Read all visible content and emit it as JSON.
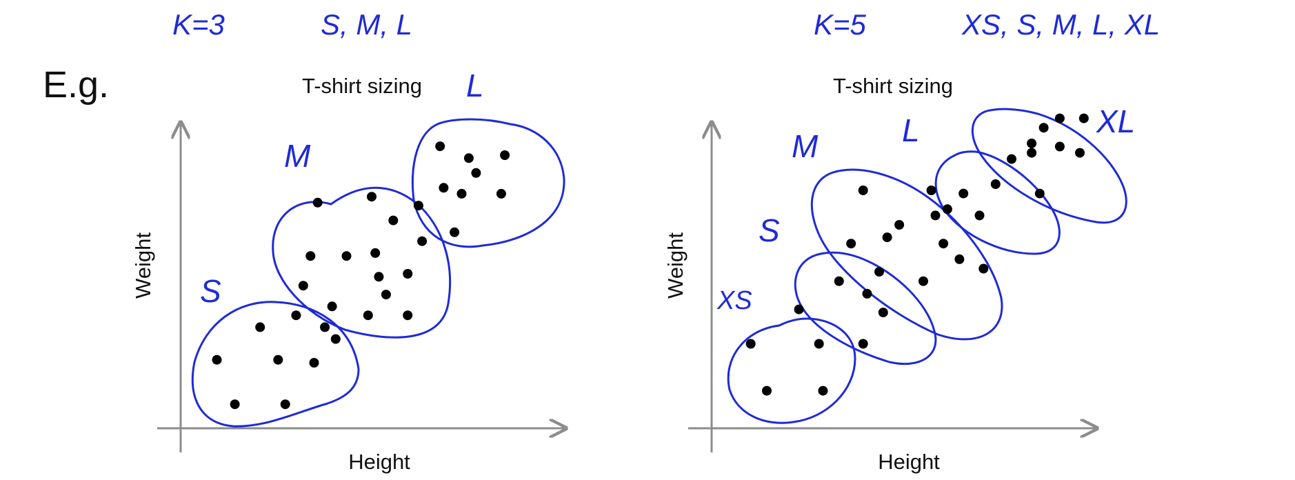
{
  "slide": {
    "example_label": "E.g.",
    "annotations": {
      "k_left": "K=3",
      "sizes_left": "S, M, L",
      "k_right": "K=5",
      "sizes_right": "XS, S, M, L, XL"
    }
  },
  "colors": {
    "ink": "#1f2ad6",
    "axis": "#8c8c8c",
    "point": "#000000",
    "text": "#111111"
  },
  "chart_data": [
    {
      "type": "scatter",
      "title": "T-shirt sizing",
      "xlabel": "Height",
      "ylabel": "Weight",
      "xlim": [
        0,
        10
      ],
      "ylim": [
        0,
        10
      ],
      "grid": false,
      "points": [
        {
          "x": 0.7,
          "y": 2.1,
          "cluster": "S"
        },
        {
          "x": 1.2,
          "y": 0.6,
          "cluster": "S"
        },
        {
          "x": 1.9,
          "y": 3.2,
          "cluster": "S"
        },
        {
          "x": 2.4,
          "y": 2.1,
          "cluster": "S"
        },
        {
          "x": 2.6,
          "y": 0.6,
          "cluster": "S"
        },
        {
          "x": 2.9,
          "y": 3.6,
          "cluster": "S"
        },
        {
          "x": 3.4,
          "y": 2.0,
          "cluster": "S"
        },
        {
          "x": 3.7,
          "y": 3.2,
          "cluster": "S"
        },
        {
          "x": 4.0,
          "y": 2.8,
          "cluster": "S"
        },
        {
          "x": 3.1,
          "y": 4.6,
          "cluster": "M"
        },
        {
          "x": 3.3,
          "y": 5.6,
          "cluster": "M"
        },
        {
          "x": 3.5,
          "y": 7.4,
          "cluster": "M"
        },
        {
          "x": 3.9,
          "y": 3.9,
          "cluster": "M"
        },
        {
          "x": 4.3,
          "y": 5.6,
          "cluster": "M"
        },
        {
          "x": 4.9,
          "y": 3.6,
          "cluster": "M"
        },
        {
          "x": 5.0,
          "y": 7.6,
          "cluster": "M"
        },
        {
          "x": 5.1,
          "y": 5.7,
          "cluster": "M"
        },
        {
          "x": 5.2,
          "y": 4.9,
          "cluster": "M"
        },
        {
          "x": 5.4,
          "y": 4.3,
          "cluster": "M"
        },
        {
          "x": 5.6,
          "y": 6.8,
          "cluster": "M"
        },
        {
          "x": 6.0,
          "y": 5.0,
          "cluster": "M"
        },
        {
          "x": 6.0,
          "y": 3.6,
          "cluster": "M"
        },
        {
          "x": 6.3,
          "y": 7.3,
          "cluster": "M"
        },
        {
          "x": 6.4,
          "y": 6.1,
          "cluster": "M"
        },
        {
          "x": 6.9,
          "y": 9.3,
          "cluster": "L"
        },
        {
          "x": 7.0,
          "y": 7.9,
          "cluster": "L"
        },
        {
          "x": 7.3,
          "y": 6.4,
          "cluster": "L"
        },
        {
          "x": 7.5,
          "y": 7.7,
          "cluster": "L"
        },
        {
          "x": 7.7,
          "y": 8.9,
          "cluster": "L"
        },
        {
          "x": 7.9,
          "y": 8.4,
          "cluster": "L"
        },
        {
          "x": 8.6,
          "y": 7.7,
          "cluster": "L"
        },
        {
          "x": 8.7,
          "y": 9.0,
          "cluster": "L"
        }
      ],
      "cluster_labels": [
        "S",
        "M",
        "L"
      ]
    },
    {
      "type": "scatter",
      "title": "T-shirt sizing",
      "xlabel": "Height",
      "ylabel": "Weight",
      "xlim": [
        0,
        10
      ],
      "ylim": [
        0,
        10
      ],
      "grid": false,
      "points": [
        {
          "x": 0.7,
          "y": 2.5,
          "cluster": "XS"
        },
        {
          "x": 1.1,
          "y": 1.0,
          "cluster": "XS"
        },
        {
          "x": 1.9,
          "y": 3.6,
          "cluster": "XS"
        },
        {
          "x": 2.4,
          "y": 2.5,
          "cluster": "XS"
        },
        {
          "x": 2.5,
          "y": 1.0,
          "cluster": "XS"
        },
        {
          "x": 3.5,
          "y": 2.5,
          "cluster": "XS"
        },
        {
          "x": 2.9,
          "y": 4.5,
          "cluster": "S"
        },
        {
          "x": 3.2,
          "y": 5.7,
          "cluster": "S"
        },
        {
          "x": 3.6,
          "y": 4.1,
          "cluster": "S"
        },
        {
          "x": 3.9,
          "y": 4.8,
          "cluster": "S"
        },
        {
          "x": 4.0,
          "y": 3.5,
          "cluster": "S"
        },
        {
          "x": 4.1,
          "y": 5.9,
          "cluster": "S"
        },
        {
          "x": 5.0,
          "y": 4.5,
          "cluster": "S"
        },
        {
          "x": 3.5,
          "y": 7.4,
          "cluster": "M"
        },
        {
          "x": 4.4,
          "y": 6.3,
          "cluster": "M"
        },
        {
          "x": 5.2,
          "y": 7.4,
          "cluster": "M"
        },
        {
          "x": 5.3,
          "y": 6.6,
          "cluster": "M"
        },
        {
          "x": 5.5,
          "y": 5.7,
          "cluster": "M"
        },
        {
          "x": 5.6,
          "y": 6.8,
          "cluster": "M"
        },
        {
          "x": 5.9,
          "y": 5.2,
          "cluster": "M"
        },
        {
          "x": 6.0,
          "y": 7.3,
          "cluster": "M"
        },
        {
          "x": 6.4,
          "y": 6.6,
          "cluster": "M"
        },
        {
          "x": 6.5,
          "y": 4.9,
          "cluster": "M"
        },
        {
          "x": 6.8,
          "y": 7.6,
          "cluster": "L"
        },
        {
          "x": 7.2,
          "y": 8.4,
          "cluster": "L"
        },
        {
          "x": 7.7,
          "y": 8.9,
          "cluster": "L"
        },
        {
          "x": 7.9,
          "y": 7.3,
          "cluster": "L"
        },
        {
          "x": 7.7,
          "y": 8.6,
          "cluster": "L"
        },
        {
          "x": 8.0,
          "y": 9.4,
          "cluster": "XL"
        },
        {
          "x": 8.4,
          "y": 8.8,
          "cluster": "XL"
        },
        {
          "x": 8.4,
          "y": 9.7,
          "cluster": "XL"
        },
        {
          "x": 8.9,
          "y": 8.6,
          "cluster": "XL"
        },
        {
          "x": 9.0,
          "y": 9.7,
          "cluster": "XL"
        }
      ],
      "cluster_labels": [
        "XS",
        "S",
        "M",
        "L",
        "XL"
      ]
    }
  ]
}
